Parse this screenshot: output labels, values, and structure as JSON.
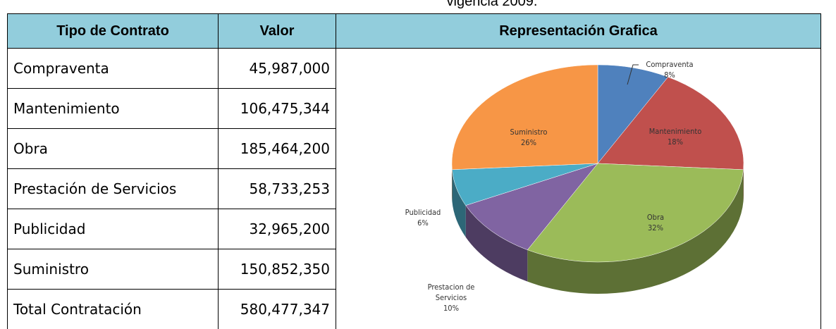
{
  "caption": "vigencia 2009.",
  "table": {
    "headers": [
      "Tipo de Contrato",
      "Valor",
      "Representación Grafica"
    ],
    "rows": [
      [
        "Compraventa",
        "45,987,000"
      ],
      [
        "Mantenimiento",
        "106,475,344"
      ],
      [
        "Obra",
        "185,464,200"
      ],
      [
        "Prestación de Servicios",
        "58,733,253"
      ],
      [
        "Publicidad",
        "32,965,200"
      ],
      [
        "Suministro",
        "150,852,350"
      ],
      [
        "Total Contratación",
        "580,477,347"
      ]
    ]
  },
  "chart": {
    "type": "pie",
    "categories": [
      "Compraventa",
      "Mantenimiento",
      "Obra",
      "Prestacion de Servicios",
      "Publicidad",
      "Suministro"
    ],
    "values": [
      8,
      18,
      32,
      10,
      6,
      26
    ],
    "value_labels": [
      "8%",
      "18%",
      "32%",
      "10%",
      "6%",
      "26%"
    ],
    "colors": [
      "#4F81BD",
      "#C0504D",
      "#9BBB59",
      "#8064A2",
      "#4BACC6",
      "#F79646"
    ]
  }
}
